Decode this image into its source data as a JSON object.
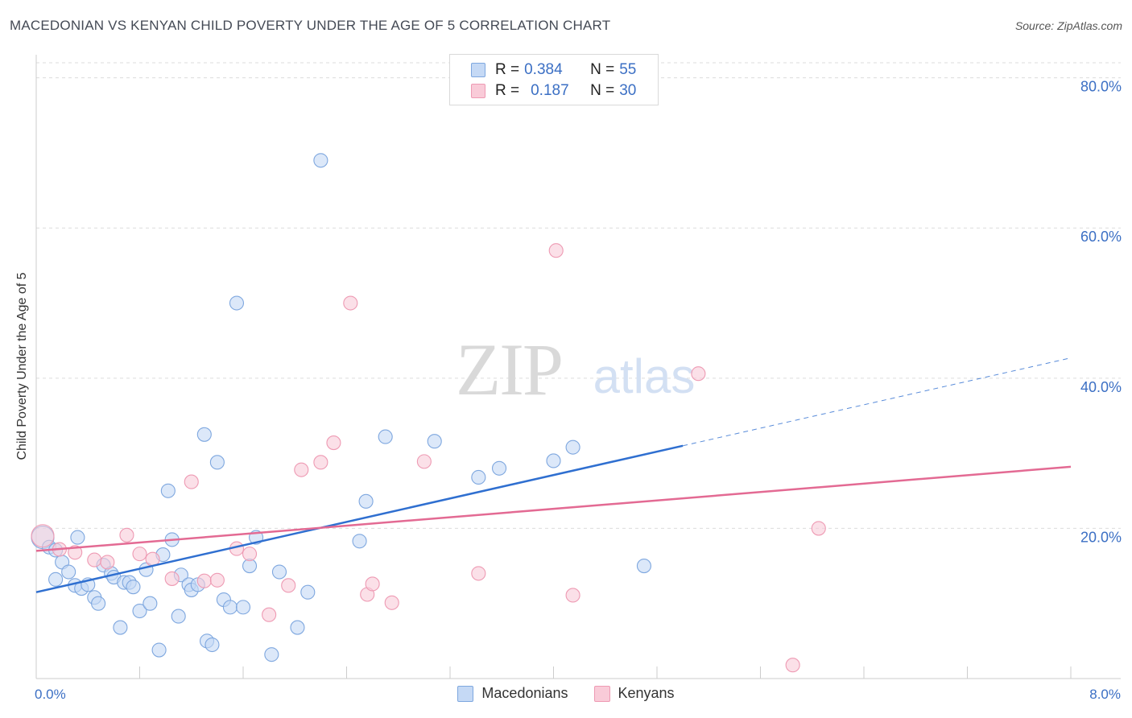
{
  "title": "MACEDONIAN VS KENYAN CHILD POVERTY UNDER THE AGE OF 5 CORRELATION CHART",
  "source": "Source: ZipAtlas.com",
  "watermark": {
    "zip": "ZIP",
    "atlas": "atlas"
  },
  "legend": {
    "r_label": "R =",
    "n_label": "N =",
    "rows": [
      {
        "r": "0.384",
        "n": "55"
      },
      {
        "r": "0.187",
        "n": "30"
      }
    ]
  },
  "bottom_legend": [
    "Macedonians",
    "Kenyans"
  ],
  "colors": {
    "blue_fill": "#c5d9f5",
    "blue_stroke": "#7ea7df",
    "blue_line": "#2f6fd0",
    "pink_fill": "#f9cbd8",
    "pink_stroke": "#ee9ab3",
    "pink_line": "#e36a93",
    "accent_text": "#3b6fc4",
    "grid": "#dcdcdc"
  },
  "chart_data": {
    "type": "scatter",
    "xlabel": "",
    "ylabel": "Child Poverty Under the Age of 5",
    "xlim": [
      0,
      8
    ],
    "ylim": [
      0,
      82
    ],
    "x_tick_labels": [
      "0.0%",
      "8.0%"
    ],
    "y_ticks": [
      20,
      40,
      60,
      80
    ],
    "y_tick_labels": [
      "20.0%",
      "40.0%",
      "60.0%",
      "80.0%"
    ],
    "grid": true,
    "legend_position": "top-center",
    "series": [
      {
        "name": "Macedonians",
        "r": 0.384,
        "n": 55,
        "trend": {
          "x0": 0,
          "y0": 11.5,
          "x1": 5.0,
          "y1": 31.0,
          "dash_to_x": 8.0
        },
        "points": [
          [
            0.05,
            18.8
          ],
          [
            0.1,
            17.5
          ],
          [
            0.15,
            17.1
          ],
          [
            0.15,
            13.2
          ],
          [
            0.2,
            15.5
          ],
          [
            0.25,
            14.2
          ],
          [
            0.3,
            12.4
          ],
          [
            0.32,
            18.8
          ],
          [
            0.35,
            12.0
          ],
          [
            0.4,
            12.5
          ],
          [
            0.45,
            10.8
          ],
          [
            0.48,
            10.0
          ],
          [
            0.52,
            15.1
          ],
          [
            0.58,
            14.0
          ],
          [
            0.6,
            13.5
          ],
          [
            0.65,
            6.8
          ],
          [
            0.68,
            12.8
          ],
          [
            0.72,
            12.8
          ],
          [
            0.75,
            12.2
          ],
          [
            0.8,
            9.0
          ],
          [
            0.85,
            14.5
          ],
          [
            0.88,
            10.0
          ],
          [
            0.95,
            3.8
          ],
          [
            0.98,
            16.5
          ],
          [
            1.02,
            25.0
          ],
          [
            1.05,
            18.5
          ],
          [
            1.1,
            8.3
          ],
          [
            1.12,
            13.8
          ],
          [
            1.18,
            12.5
          ],
          [
            1.2,
            11.8
          ],
          [
            1.25,
            12.5
          ],
          [
            1.3,
            32.5
          ],
          [
            1.32,
            5.0
          ],
          [
            1.36,
            4.5
          ],
          [
            1.4,
            28.8
          ],
          [
            1.45,
            10.5
          ],
          [
            1.5,
            9.5
          ],
          [
            1.55,
            50.0
          ],
          [
            1.6,
            9.5
          ],
          [
            1.65,
            15.0
          ],
          [
            1.7,
            18.8
          ],
          [
            1.82,
            3.2
          ],
          [
            1.88,
            14.2
          ],
          [
            2.02,
            6.8
          ],
          [
            2.1,
            11.5
          ],
          [
            2.2,
            69.0
          ],
          [
            2.5,
            18.3
          ],
          [
            2.55,
            23.6
          ],
          [
            2.7,
            32.2
          ],
          [
            3.08,
            31.6
          ],
          [
            3.42,
            26.8
          ],
          [
            3.58,
            28.0
          ],
          [
            4.0,
            29.0
          ],
          [
            4.15,
            30.8
          ],
          [
            4.7,
            15.0
          ]
        ]
      },
      {
        "name": "Kenyans",
        "r": 0.187,
        "n": 30,
        "trend": {
          "x0": 0,
          "y0": 17.0,
          "x1": 8.0,
          "y1": 28.2
        },
        "points": [
          [
            0.05,
            19.0
          ],
          [
            0.18,
            17.2
          ],
          [
            0.3,
            16.8
          ],
          [
            0.45,
            15.8
          ],
          [
            0.55,
            15.5
          ],
          [
            0.7,
            19.1
          ],
          [
            0.8,
            16.6
          ],
          [
            0.9,
            15.9
          ],
          [
            1.05,
            13.3
          ],
          [
            1.2,
            26.2
          ],
          [
            1.3,
            13.0
          ],
          [
            1.4,
            13.1
          ],
          [
            1.55,
            17.3
          ],
          [
            1.65,
            16.6
          ],
          [
            1.8,
            8.5
          ],
          [
            1.95,
            12.4
          ],
          [
            2.05,
            27.8
          ],
          [
            2.2,
            28.8
          ],
          [
            2.3,
            31.4
          ],
          [
            2.43,
            50.0
          ],
          [
            2.56,
            11.2
          ],
          [
            2.6,
            12.6
          ],
          [
            2.75,
            10.1
          ],
          [
            3.0,
            28.9
          ],
          [
            3.42,
            14.0
          ],
          [
            4.02,
            57.0
          ],
          [
            4.15,
            11.1
          ],
          [
            5.12,
            40.6
          ],
          [
            5.85,
            1.8
          ],
          [
            6.05,
            20.0
          ]
        ]
      }
    ]
  }
}
